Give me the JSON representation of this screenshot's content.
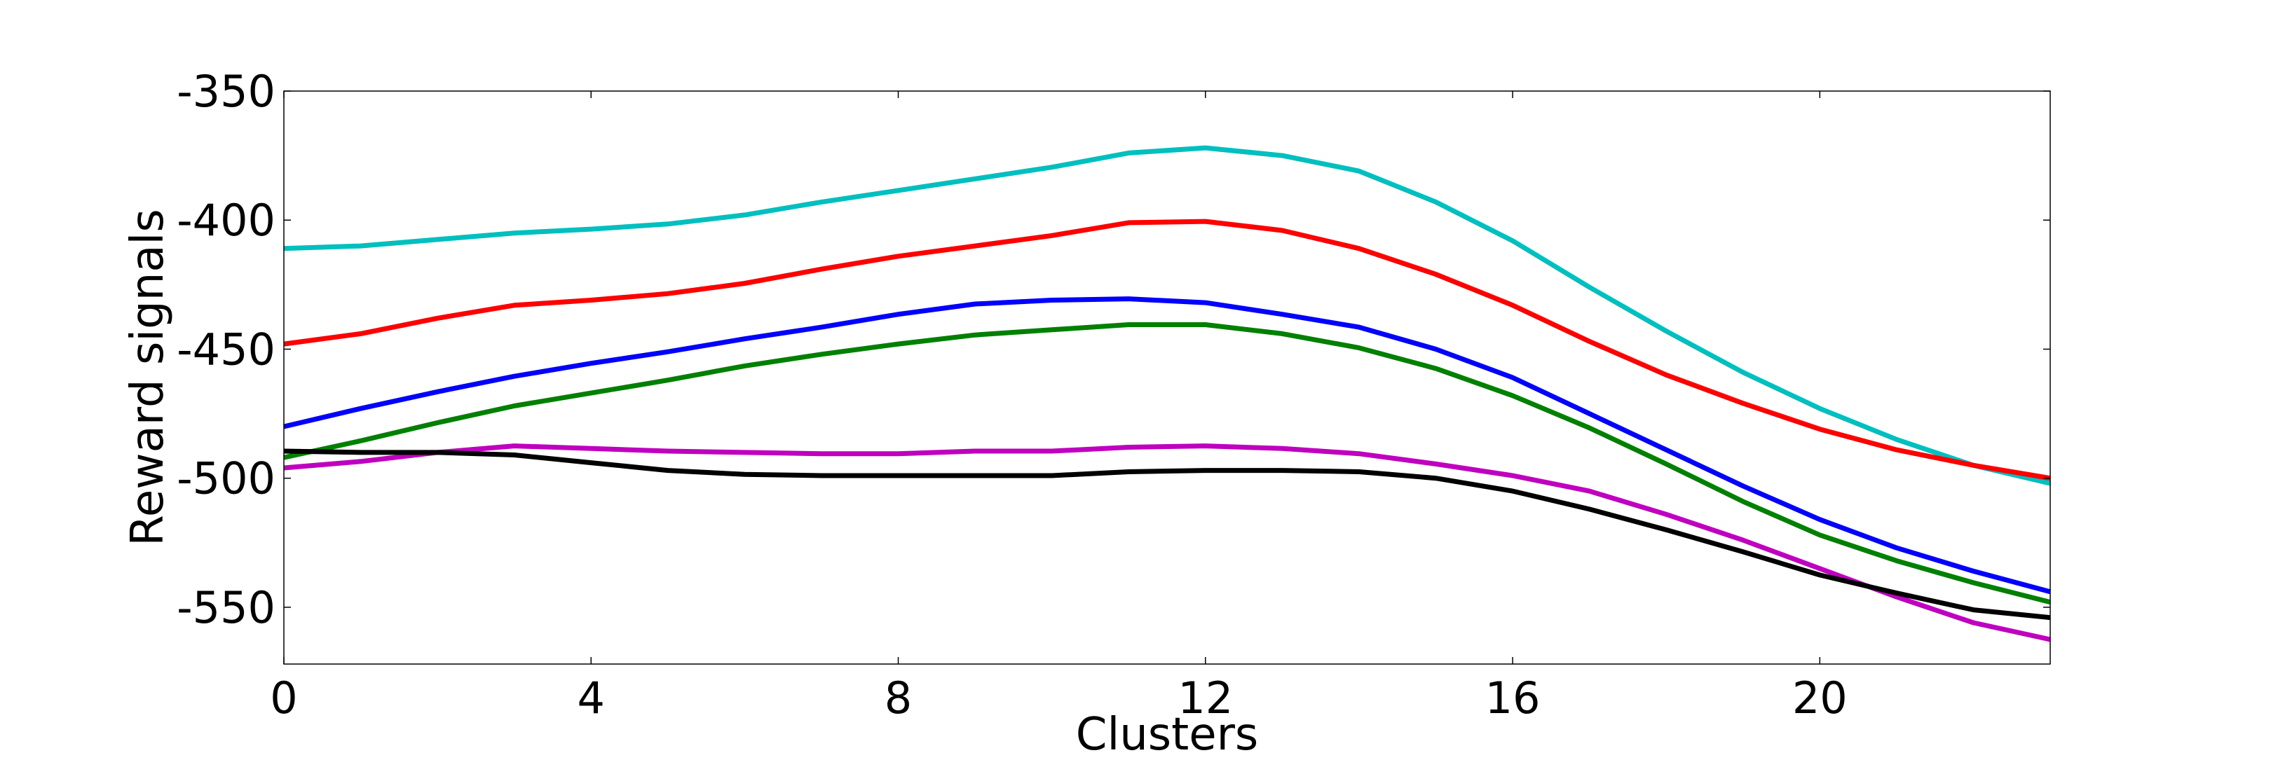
{
  "chart_data": {
    "type": "line",
    "title": "",
    "xlabel": "Clusters",
    "ylabel": "Reward signals",
    "xlim": [
      0,
      23
    ],
    "ylim": [
      -572,
      -350
    ],
    "xticks": [
      0,
      4,
      8,
      12,
      16,
      20
    ],
    "yticks": [
      -350,
      -400,
      -450,
      -500,
      -550
    ],
    "x": [
      0,
      1,
      2,
      3,
      4,
      5,
      6,
      7,
      8,
      9,
      10,
      11,
      12,
      13,
      14,
      15,
      16,
      17,
      18,
      19,
      20,
      21,
      22,
      23
    ],
    "grid": false,
    "legend": "none",
    "series": [
      {
        "color": "#00bfbf",
        "values": [
          -411,
          -410,
          -407.5,
          -405,
          -403.5,
          -401.5,
          -398,
          -393,
          -388.5,
          -384,
          -379.5,
          -374,
          -372,
          -375,
          -381,
          -393,
          -408,
          -426,
          -443,
          -459,
          -473,
          -485,
          -495,
          -502
        ]
      },
      {
        "color": "#ff0000",
        "values": [
          -448,
          -444,
          -438,
          -433,
          -431,
          -428.5,
          -424.5,
          -419,
          -414,
          -410,
          -406,
          -401,
          -400.5,
          -404,
          -411,
          -421,
          -433,
          -447,
          -460,
          -471,
          -481,
          -489,
          -495,
          -500
        ]
      },
      {
        "color": "#0000ff",
        "values": [
          -480,
          -473,
          -466.5,
          -460.5,
          -455.5,
          -451,
          -446,
          -441.5,
          -436.5,
          -432.5,
          -431,
          -430.5,
          -432,
          -436.5,
          -441.5,
          -450,
          -461,
          -475,
          -489,
          -503,
          -516,
          -527,
          -536,
          -544
        ]
      },
      {
        "color": "#008000",
        "values": [
          -492,
          -485.5,
          -478.5,
          -472,
          -467,
          -462,
          -456.5,
          -452,
          -448,
          -444.5,
          -442.5,
          -440.5,
          -440.5,
          -444,
          -449.5,
          -457.5,
          -468,
          -480.5,
          -494.5,
          -509,
          -522,
          -532,
          -540.5,
          -548
        ]
      },
      {
        "color": "#bf00bf",
        "values": [
          -496,
          -493.5,
          -490,
          -487.5,
          -488.5,
          -489.5,
          -490,
          -490.5,
          -490.5,
          -489.5,
          -489.5,
          -488,
          -487.5,
          -488.5,
          -490.5,
          -494.5,
          -499,
          -505,
          -514,
          -524,
          -535,
          -546,
          -556,
          -562.5
        ]
      },
      {
        "color": "#000000",
        "values": [
          -489.5,
          -490,
          -490,
          -491,
          -494,
          -497,
          -498.5,
          -499,
          -499,
          -499,
          -499,
          -497.5,
          -497,
          -497,
          -497.5,
          -500,
          -505,
          -512,
          -520,
          -528.5,
          -537.5,
          -544.5,
          -551,
          -554
        ]
      }
    ]
  }
}
